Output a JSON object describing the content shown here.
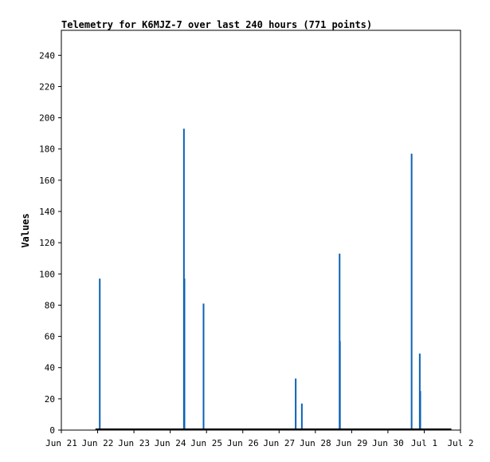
{
  "chart_data": {
    "type": "bar",
    "title": "Telemetry for K6MJZ-7 over last 240 hours (771 points)",
    "xlabel": "",
    "ylabel": "Values",
    "x_ticks": [
      "Jun 21",
      "Jun 22",
      "Jun 23",
      "Jun 24",
      "Jun 25",
      "Jun 26",
      "Jun 27",
      "Jun 28",
      "Jun 29",
      "Jun 30",
      "Jul 1",
      "Jul 2"
    ],
    "xlim": [
      0,
      240
    ],
    "y_ticks": [
      0,
      20,
      40,
      60,
      80,
      100,
      120,
      140,
      160,
      180,
      200,
      220,
      240
    ],
    "ylim": [
      0,
      256
    ],
    "grid": false,
    "baseline_range_hours": [
      20.5,
      234.5
    ],
    "series": [
      {
        "color": "#0b62b5",
        "points": [
          {
            "hour": 23.1,
            "value": 97
          },
          {
            "hour": 73.7,
            "value": 193
          },
          {
            "hour": 74.0,
            "value": 97
          },
          {
            "hour": 85.5,
            "value": 81
          },
          {
            "hour": 140.9,
            "value": 33
          },
          {
            "hour": 144.6,
            "value": 17
          },
          {
            "hour": 167.3,
            "value": 113
          },
          {
            "hour": 167.5,
            "value": 57
          },
          {
            "hour": 210.6,
            "value": 177
          },
          {
            "hour": 215.5,
            "value": 49
          },
          {
            "hour": 215.8,
            "value": 25
          }
        ]
      }
    ]
  }
}
